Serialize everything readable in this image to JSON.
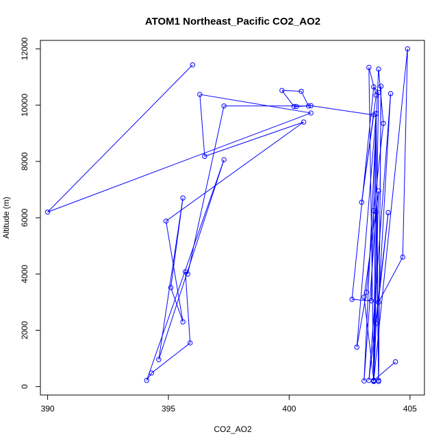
{
  "chart_data": {
    "type": "line",
    "title": "ATOM1 Northeast_Pacific CO2_AO2",
    "xlabel": "CO2_AO2",
    "ylabel": "Altitude (m)",
    "xlim": [
      389.7,
      405.6
    ],
    "ylim": [
      -300,
      12300
    ],
    "xticks": [
      390,
      395,
      400,
      405
    ],
    "yticks": [
      0,
      2000,
      4000,
      6000,
      8000,
      10000,
      12000
    ],
    "grid": false,
    "legend": "none",
    "colors": {
      "series": "#0000ff",
      "frame": "#000000"
    },
    "marker": "open-circle",
    "series": [
      {
        "values": [
          [
            396.0,
            11430
          ],
          [
            390.0,
            6200
          ],
          [
            400.9,
            9720
          ],
          [
            396.3,
            10380
          ],
          [
            396.5,
            8180
          ],
          [
            400.6,
            9400
          ],
          [
            394.9,
            5880
          ],
          [
            395.6,
            2300
          ],
          [
            395.1,
            3520
          ],
          [
            395.6,
            6700
          ],
          [
            394.6,
            960
          ],
          [
            397.3,
            8060
          ],
          [
            394.1,
            220
          ],
          [
            394.3,
            480
          ],
          [
            395.9,
            1550
          ],
          [
            395.7,
            4080
          ],
          [
            395.8,
            4000
          ],
          [
            397.3,
            9970
          ],
          [
            400.8,
            9970
          ],
          [
            400.5,
            10490
          ],
          [
            399.7,
            10520
          ],
          [
            400.2,
            9950
          ],
          [
            400.3,
            9950
          ],
          [
            400.9,
            9980
          ],
          [
            403.5,
            9650
          ],
          [
            403.0,
            6550
          ],
          [
            403.6,
            10350
          ],
          [
            403.3,
            11340
          ],
          [
            403.5,
            180
          ],
          [
            403.6,
            9700
          ],
          [
            403.7,
            180
          ],
          [
            403.8,
            10670
          ],
          [
            403.7,
            220
          ],
          [
            403.6,
            6200
          ],
          [
            403.1,
            200
          ],
          [
            403.7,
            11280
          ],
          [
            403.9,
            9350
          ],
          [
            403.5,
            6250
          ],
          [
            403.2,
            3350
          ],
          [
            402.8,
            1400
          ],
          [
            403.6,
            9700
          ],
          [
            403.4,
            3050
          ],
          [
            402.6,
            3100
          ],
          [
            403.5,
            10650
          ],
          [
            403.7,
            10450
          ],
          [
            403.5,
            200
          ],
          [
            403.7,
            6950
          ],
          [
            403.1,
            3180
          ],
          [
            403.5,
            220
          ],
          [
            403.6,
            2250
          ],
          [
            404.1,
            6180
          ],
          [
            403.3,
            220
          ],
          [
            404.2,
            10410
          ],
          [
            403.7,
            3000
          ],
          [
            404.7,
            4600
          ],
          [
            404.9,
            12000
          ],
          [
            403.5,
            220
          ],
          [
            404.4,
            880
          ]
        ]
      }
    ]
  }
}
